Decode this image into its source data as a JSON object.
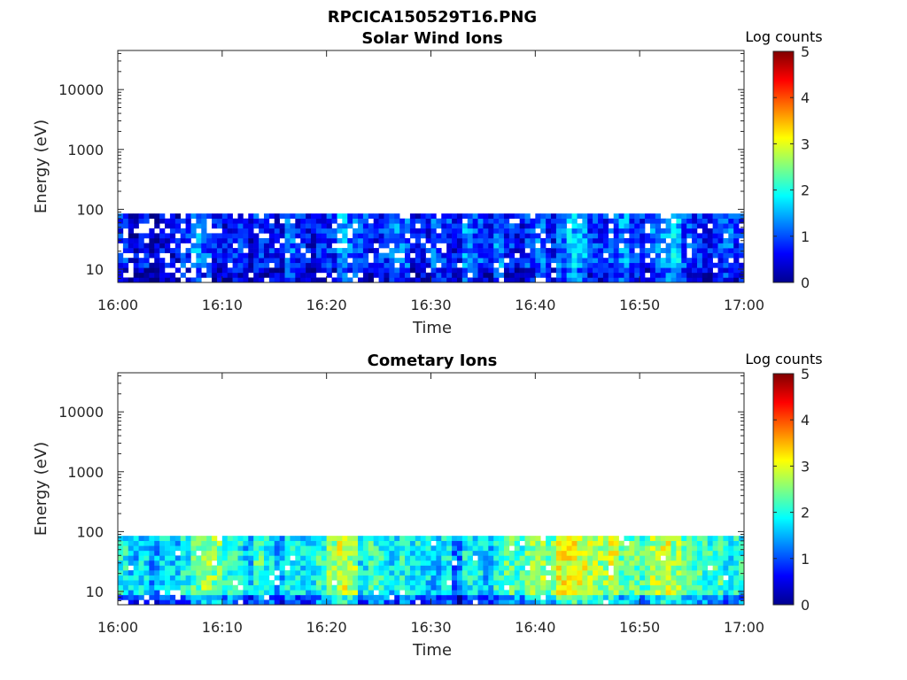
{
  "figure": {
    "title": "RPCICA150529T16.PNG"
  },
  "chart_data": [
    {
      "type": "heatmap",
      "title": "Solar Wind Ions",
      "xlabel": "Time",
      "ylabel": "Energy (eV)",
      "x_ticks": [
        "16:00",
        "16:10",
        "16:20",
        "16:30",
        "16:40",
        "16:50",
        "17:00"
      ],
      "y_ticks": [
        "10",
        "100",
        "1000",
        "10000"
      ],
      "y_scale": "log",
      "ylim_eV": [
        6,
        45000
      ],
      "xlim": [
        "16:00",
        "17:00"
      ],
      "data_energy_range_eV": [
        6,
        85
      ],
      "colorbar": {
        "label": "Log counts",
        "ticks": [
          "0",
          "1",
          "2",
          "3",
          "4",
          "5"
        ],
        "range": [
          0,
          5
        ],
        "colormap": "jet"
      },
      "time_profile_log_counts": [
        0.8,
        0.4,
        0.7,
        0.3,
        0.6,
        0.5,
        0.9,
        1.3,
        1.0,
        0.7,
        0.6,
        0.8,
        0.5,
        0.9,
        0.7,
        0.6,
        1.1,
        0.8,
        0.6,
        0.7,
        0.8,
        1.4,
        1.2,
        0.9,
        0.6,
        0.8,
        1.2,
        1.1,
        0.6,
        0.7,
        1.0,
        0.9,
        0.6,
        1.3,
        1.0,
        0.7,
        1.2,
        0.8,
        0.6,
        0.9,
        1.1,
        0.7,
        1.2,
        1.5,
        1.4,
        0.9,
        0.8,
        1.0,
        1.3,
        0.9,
        0.8,
        1.2,
        1.4,
        1.6,
        1.0,
        0.8,
        0.7,
        0.9,
        1.1,
        0.8
      ],
      "time_resolution_minutes": 1
    },
    {
      "type": "heatmap",
      "title": "Cometary Ions",
      "xlabel": "Time",
      "ylabel": "Energy (eV)",
      "x_ticks": [
        "16:00",
        "16:10",
        "16:20",
        "16:30",
        "16:40",
        "16:50",
        "17:00"
      ],
      "y_ticks": [
        "10",
        "100",
        "1000",
        "10000"
      ],
      "y_scale": "log",
      "ylim_eV": [
        6,
        45000
      ],
      "xlim": [
        "16:00",
        "17:00"
      ],
      "data_energy_range_eV": [
        6,
        85
      ],
      "colorbar": {
        "label": "Log counts",
        "ticks": [
          "0",
          "1",
          "2",
          "3",
          "4",
          "5"
        ],
        "range": [
          0,
          5
        ],
        "colormap": "jet"
      },
      "time_profile_log_counts": [
        1.9,
        1.6,
        1.7,
        1.4,
        1.8,
        1.6,
        1.9,
        2.3,
        2.6,
        2.5,
        2.1,
        2.0,
        1.6,
        2.2,
        1.9,
        1.5,
        2.0,
        1.8,
        1.7,
        2.1,
        2.5,
        2.9,
        2.7,
        1.8,
        2.1,
        2.0,
        1.7,
        2.0,
        1.9,
        1.7,
        1.6,
        1.8,
        1.2,
        1.9,
        1.8,
        1.6,
        2.0,
        2.3,
        2.1,
        2.5,
        2.6,
        2.4,
        3.0,
        3.1,
        2.9,
        2.8,
        2.6,
        2.9,
        2.4,
        2.3,
        2.2,
        2.7,
        2.9,
        2.6,
        2.3,
        2.2,
        2.1,
        2.2,
        1.9,
        2.0
      ],
      "time_resolution_minutes": 1
    }
  ]
}
